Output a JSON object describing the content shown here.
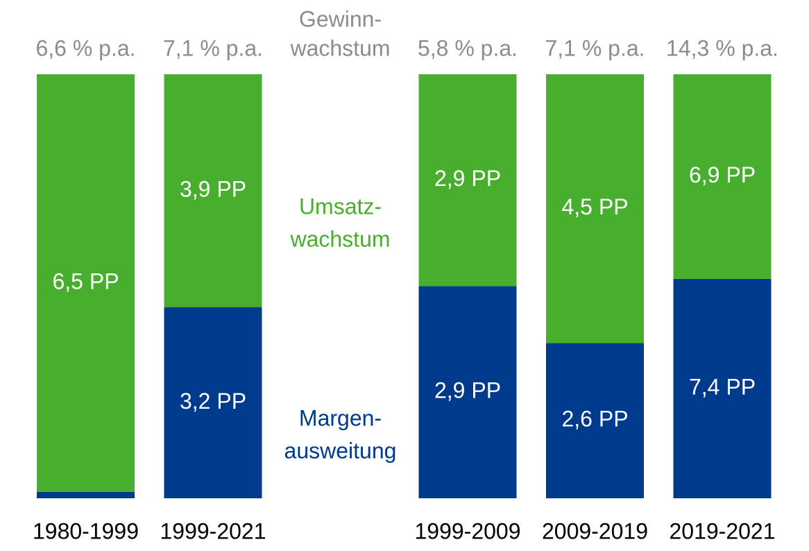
{
  "chart_data": {
    "type": "stacked_bar_100",
    "categories": [
      "1980-1999",
      "1999-2021",
      null,
      "1999-2009",
      "2009-2019",
      "2019-2021"
    ],
    "series": [
      {
        "name": [
          "Margen-",
          "ausweitung"
        ],
        "color": "#003a8c",
        "values": [
          0.1,
          3.2,
          null,
          2.9,
          2.6,
          7.4
        ],
        "value_labels": [
          null,
          "3,2 PP",
          null,
          "2,9 PP",
          "2,6 PP",
          "7,4 PP"
        ]
      },
      {
        "name": [
          "Umsatz-",
          "wachstum"
        ],
        "color": "#47ae2e",
        "values": [
          6.5,
          3.9,
          null,
          2.9,
          4.5,
          6.9
        ],
        "value_labels": [
          "6,5 PP",
          "3,9 PP",
          null,
          "2,9 PP",
          "4,5 PP",
          "6,9 PP"
        ]
      }
    ],
    "totals_name": [
      "Gewinn-",
      "wachstum"
    ],
    "totals": [
      6.6,
      7.1,
      null,
      5.8,
      7.1,
      14.3
    ],
    "total_labels": [
      "6,6 % p.a.",
      "7,1 % p.a.",
      null,
      "5,8 % p.a.",
      "7,1 % p.a.",
      "14,3 % p.a."
    ],
    "totals_color": "#8c8c8c"
  }
}
